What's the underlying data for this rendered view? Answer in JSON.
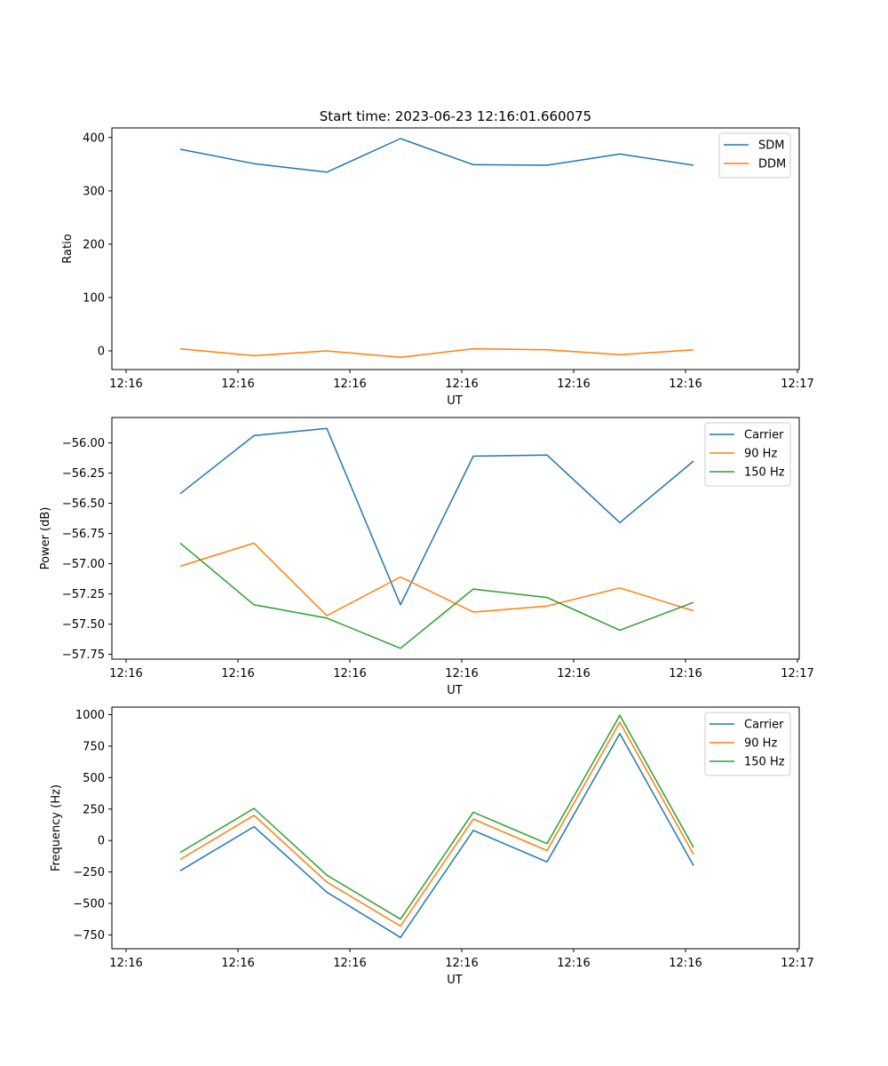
{
  "figure": {
    "suptitle": "Start time: 2023-06-23 12:16:01.660075"
  },
  "chart_data": [
    {
      "type": "line",
      "title": "Start time: 2023-06-23 12:16:01.660075",
      "xlabel": "UT",
      "ylabel": "Ratio",
      "x_ticks": [
        "12:16",
        "12:16",
        "12:16",
        "12:16",
        "12:16",
        "12:16",
        "12:17"
      ],
      "y_ticks": [
        0,
        100,
        200,
        300,
        400
      ],
      "ylim": [
        -35,
        418
      ],
      "legend": "top-right",
      "grid": false,
      "series": [
        {
          "name": "SDM",
          "color": "#1f77b4",
          "values": [
            378,
            351,
            335,
            398,
            349,
            348,
            369,
            348
          ]
        },
        {
          "name": "DDM",
          "color": "#ff7f0e",
          "values": [
            4,
            -9,
            0,
            -12,
            4,
            2,
            -7,
            2
          ]
        }
      ]
    },
    {
      "type": "line",
      "xlabel": "UT",
      "ylabel": "Power (dB)",
      "x_ticks": [
        "12:16",
        "12:16",
        "12:16",
        "12:16",
        "12:16",
        "12:16",
        "12:17"
      ],
      "y_ticks": [
        "-56.00",
        "-56.25",
        "-56.50",
        "-56.75",
        "-57.00",
        "-57.25",
        "-57.50",
        "-57.75"
      ],
      "ylim": [
        -57.79,
        -55.79
      ],
      "legend": "top-right",
      "grid": false,
      "series": [
        {
          "name": "Carrier",
          "color": "#1f77b4",
          "values": [
            -56.42,
            -55.94,
            -55.88,
            -57.34,
            -56.11,
            -56.1,
            -56.66,
            -56.15
          ]
        },
        {
          "name": "90 Hz",
          "color": "#ff7f0e",
          "values": [
            -57.02,
            -56.83,
            -57.43,
            -57.11,
            -57.4,
            -57.35,
            -57.2,
            -57.39
          ]
        },
        {
          "name": "150 Hz",
          "color": "#2ca02c",
          "values": [
            -56.83,
            -57.34,
            -57.45,
            -57.7,
            -57.21,
            -57.28,
            -57.55,
            -57.32
          ]
        }
      ]
    },
    {
      "type": "line",
      "xlabel": "UT",
      "ylabel": "Frequency (Hz)",
      "x_ticks": [
        "12:16",
        "12:16",
        "12:16",
        "12:16",
        "12:16",
        "12:16",
        "12:17"
      ],
      "y_ticks": [
        -750,
        -500,
        -250,
        0,
        250,
        500,
        750,
        1000
      ],
      "ylim": [
        -860,
        1060
      ],
      "legend": "top-right",
      "grid": false,
      "series": [
        {
          "name": "Carrier",
          "color": "#1f77b4",
          "values": [
            -240,
            110,
            -410,
            -770,
            80,
            -170,
            850,
            -200
          ]
        },
        {
          "name": "90 Hz",
          "color": "#ff7f0e",
          "values": [
            -150,
            200,
            -330,
            -680,
            170,
            -80,
            940,
            -110
          ]
        },
        {
          "name": "150 Hz",
          "color": "#2ca02c",
          "values": [
            -95,
            255,
            -275,
            -625,
            225,
            -25,
            995,
            -55
          ]
        }
      ]
    }
  ]
}
